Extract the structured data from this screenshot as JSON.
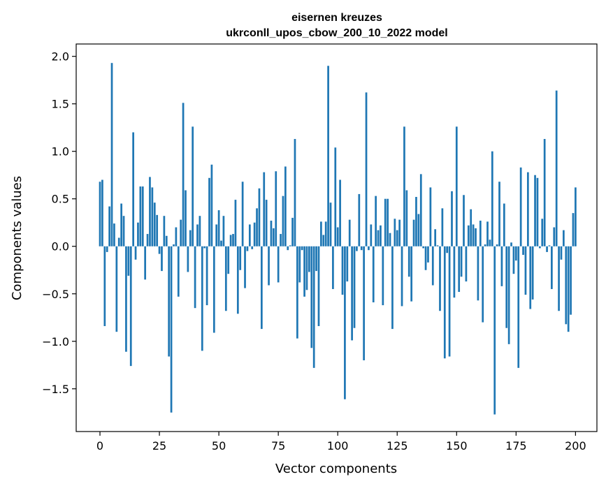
{
  "chart_data": {
    "type": "bar",
    "title": "eisernen kreuzes",
    "subtitle": "ukrconll_upos_cbow_200_10_2022 model",
    "xlabel": "Vector components",
    "ylabel": "Components values",
    "xlim": [
      -10,
      209
    ],
    "ylim": [
      -1.95,
      2.13
    ],
    "xticks": [
      0,
      25,
      50,
      75,
      100,
      125,
      150,
      175,
      200
    ],
    "yticks": [
      -1.5,
      -1.0,
      -0.5,
      0.0,
      0.5,
      1.0,
      1.5,
      2.0
    ],
    "ytick_labels": [
      "−1.5",
      "−1.0",
      "−0.5",
      "0.0",
      "0.5",
      "1.0",
      "1.5",
      "2.0"
    ],
    "grid": false,
    "bar_color": "#1f77b4",
    "values": [
      0.68,
      0.7,
      -0.84,
      -0.06,
      0.42,
      1.93,
      0.24,
      -0.9,
      0.09,
      0.45,
      0.32,
      -1.11,
      -0.31,
      -1.26,
      1.2,
      -0.14,
      0.25,
      0.63,
      0.63,
      -0.35,
      0.13,
      0.73,
      0.62,
      0.46,
      0.33,
      -0.08,
      -0.26,
      0.32,
      0.11,
      -1.16,
      -1.75,
      0.02,
      0.2,
      -0.53,
      0.28,
      1.51,
      0.59,
      -0.27,
      0.17,
      1.26,
      -0.65,
      0.23,
      0.32,
      -1.1,
      -0.02,
      -0.62,
      0.72,
      0.86,
      -0.91,
      0.23,
      0.38,
      0.06,
      0.32,
      -0.68,
      -0.29,
      0.12,
      0.13,
      0.49,
      -0.71,
      -0.25,
      0.68,
      -0.44,
      -0.05,
      0.23,
      -0.03,
      0.25,
      0.4,
      0.61,
      -0.87,
      0.78,
      0.49,
      -0.41,
      0.27,
      0.19,
      0.79,
      -0.38,
      0.13,
      0.53,
      0.84,
      -0.04,
      0.01,
      0.3,
      1.13,
      -0.97,
      -0.38,
      -0.04,
      -0.53,
      -0.46,
      -0.27,
      -1.07,
      -1.28,
      -0.26,
      -0.84,
      0.26,
      0.12,
      0.26,
      1.9,
      0.46,
      -0.45,
      1.04,
      0.2,
      0.7,
      -0.51,
      -1.61,
      -0.37,
      0.28,
      -0.99,
      -0.86,
      -0.05,
      0.55,
      -0.04,
      -1.2,
      1.62,
      -0.04,
      0.23,
      -0.59,
      0.53,
      0.17,
      0.22,
      -0.62,
      0.5,
      0.5,
      0.14,
      -0.87,
      0.29,
      0.17,
      0.28,
      -0.63,
      1.26,
      0.59,
      -0.32,
      -0.58,
      0.28,
      0.52,
      0.34,
      0.76,
      -0.02,
      -0.25,
      -0.17,
      0.62,
      -0.41,
      0.18,
      0.01,
      -0.68,
      0.4,
      -1.18,
      -0.07,
      -1.16,
      0.58,
      -0.54,
      1.26,
      -0.48,
      -0.32,
      0.54,
      -0.37,
      0.22,
      0.39,
      0.23,
      0.19,
      -0.57,
      0.27,
      -0.8,
      0.02,
      0.26,
      0.07,
      1.0,
      -1.77,
      0.02,
      0.68,
      -0.42,
      0.45,
      -0.86,
      -1.03,
      0.04,
      -0.29,
      -0.15,
      -1.28,
      0.83,
      -0.09,
      -0.51,
      0.78,
      -0.66,
      -0.56,
      0.75,
      0.72,
      -0.02,
      0.29,
      1.13,
      -0.06,
      0.01,
      -0.45,
      0.2,
      1.64,
      -0.68,
      -0.14,
      0.17,
      -0.82,
      -0.9,
      -0.72,
      0.35,
      0.62
    ]
  }
}
